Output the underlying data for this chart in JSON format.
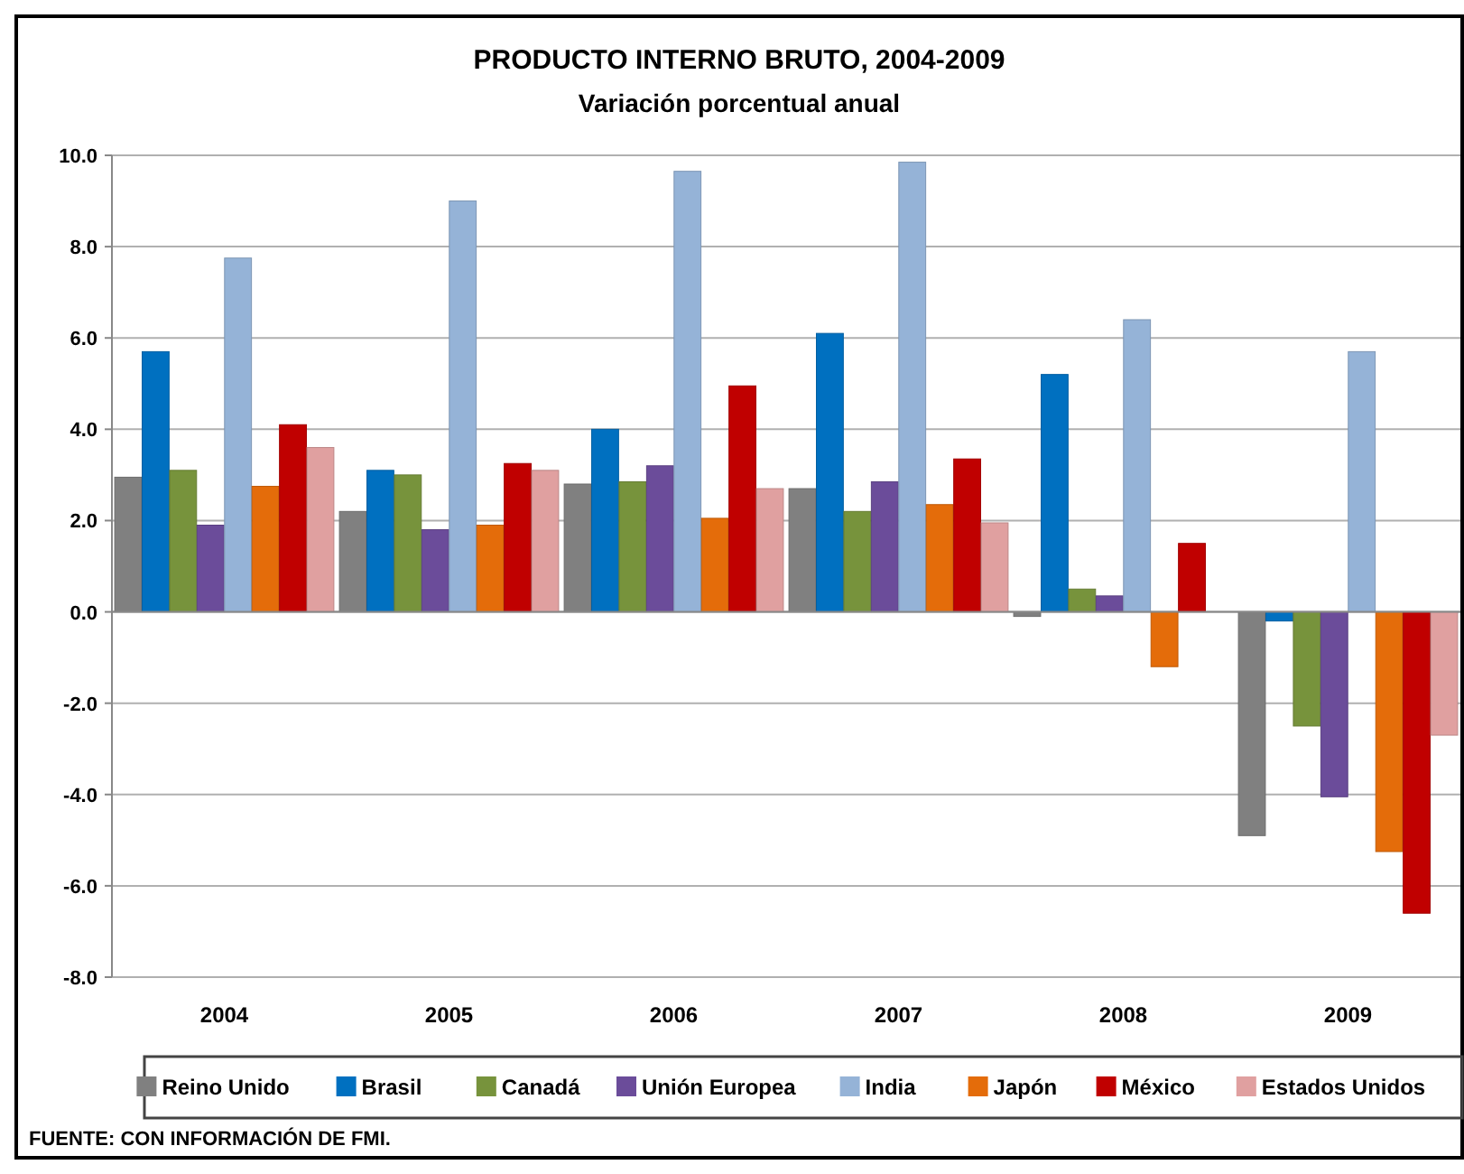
{
  "chart_data": {
    "type": "bar",
    "title": "PRODUCTO INTERNO BRUTO, 2004-2009",
    "subtitle": "Variación porcentual anual",
    "categories": [
      "2004",
      "2005",
      "2006",
      "2007",
      "2008",
      "2009"
    ],
    "series": [
      {
        "name": "Reino Unido",
        "color": "#808080",
        "values": [
          2.95,
          2.2,
          2.8,
          2.7,
          -0.1,
          -4.9
        ]
      },
      {
        "name": "Brasil",
        "color": "#0070c0",
        "values": [
          5.7,
          3.1,
          4.0,
          6.1,
          5.2,
          -0.2
        ]
      },
      {
        "name": "Canadá",
        "color": "#77933c",
        "values": [
          3.1,
          3.0,
          2.85,
          2.2,
          0.5,
          -2.5
        ]
      },
      {
        "name": "Unión Europea",
        "color": "#6b4c9a",
        "values": [
          1.9,
          1.8,
          3.2,
          2.85,
          0.35,
          -4.05
        ]
      },
      {
        "name": "India",
        "color": "#95b3d7",
        "values": [
          7.75,
          9.0,
          9.65,
          9.85,
          6.4,
          5.7
        ]
      },
      {
        "name": "Japón",
        "color": "#e46c0a",
        "values": [
          2.75,
          1.9,
          2.05,
          2.35,
          -1.2,
          -5.25
        ]
      },
      {
        "name": "México",
        "color": "#c00000",
        "values": [
          4.1,
          3.25,
          4.95,
          3.35,
          1.5,
          -6.6
        ]
      },
      {
        "name": "Estados Unidos",
        "color": "#e0a0a0",
        "values": [
          3.6,
          3.1,
          2.7,
          1.95,
          null,
          -2.7
        ]
      }
    ],
    "ylim": [
      -8,
      10
    ],
    "yticks": [
      {
        "value": -8,
        "label": "-8.0"
      },
      {
        "value": -6,
        "label": "-6.0"
      },
      {
        "value": -4,
        "label": "-4.0"
      },
      {
        "value": -2,
        "label": "-2.0"
      },
      {
        "value": 0,
        "label": "0.0"
      },
      {
        "value": 2,
        "label": "2.0"
      },
      {
        "value": 4,
        "label": "4.0"
      },
      {
        "value": 6,
        "label": "6.0"
      },
      {
        "value": 8,
        "label": "8.0"
      },
      {
        "value": 10,
        "label": "10.0"
      }
    ],
    "grid": "y",
    "legend": "bottom",
    "annotations": [
      "FUENTE: CON INFORMACIÓN DE FMI."
    ]
  }
}
